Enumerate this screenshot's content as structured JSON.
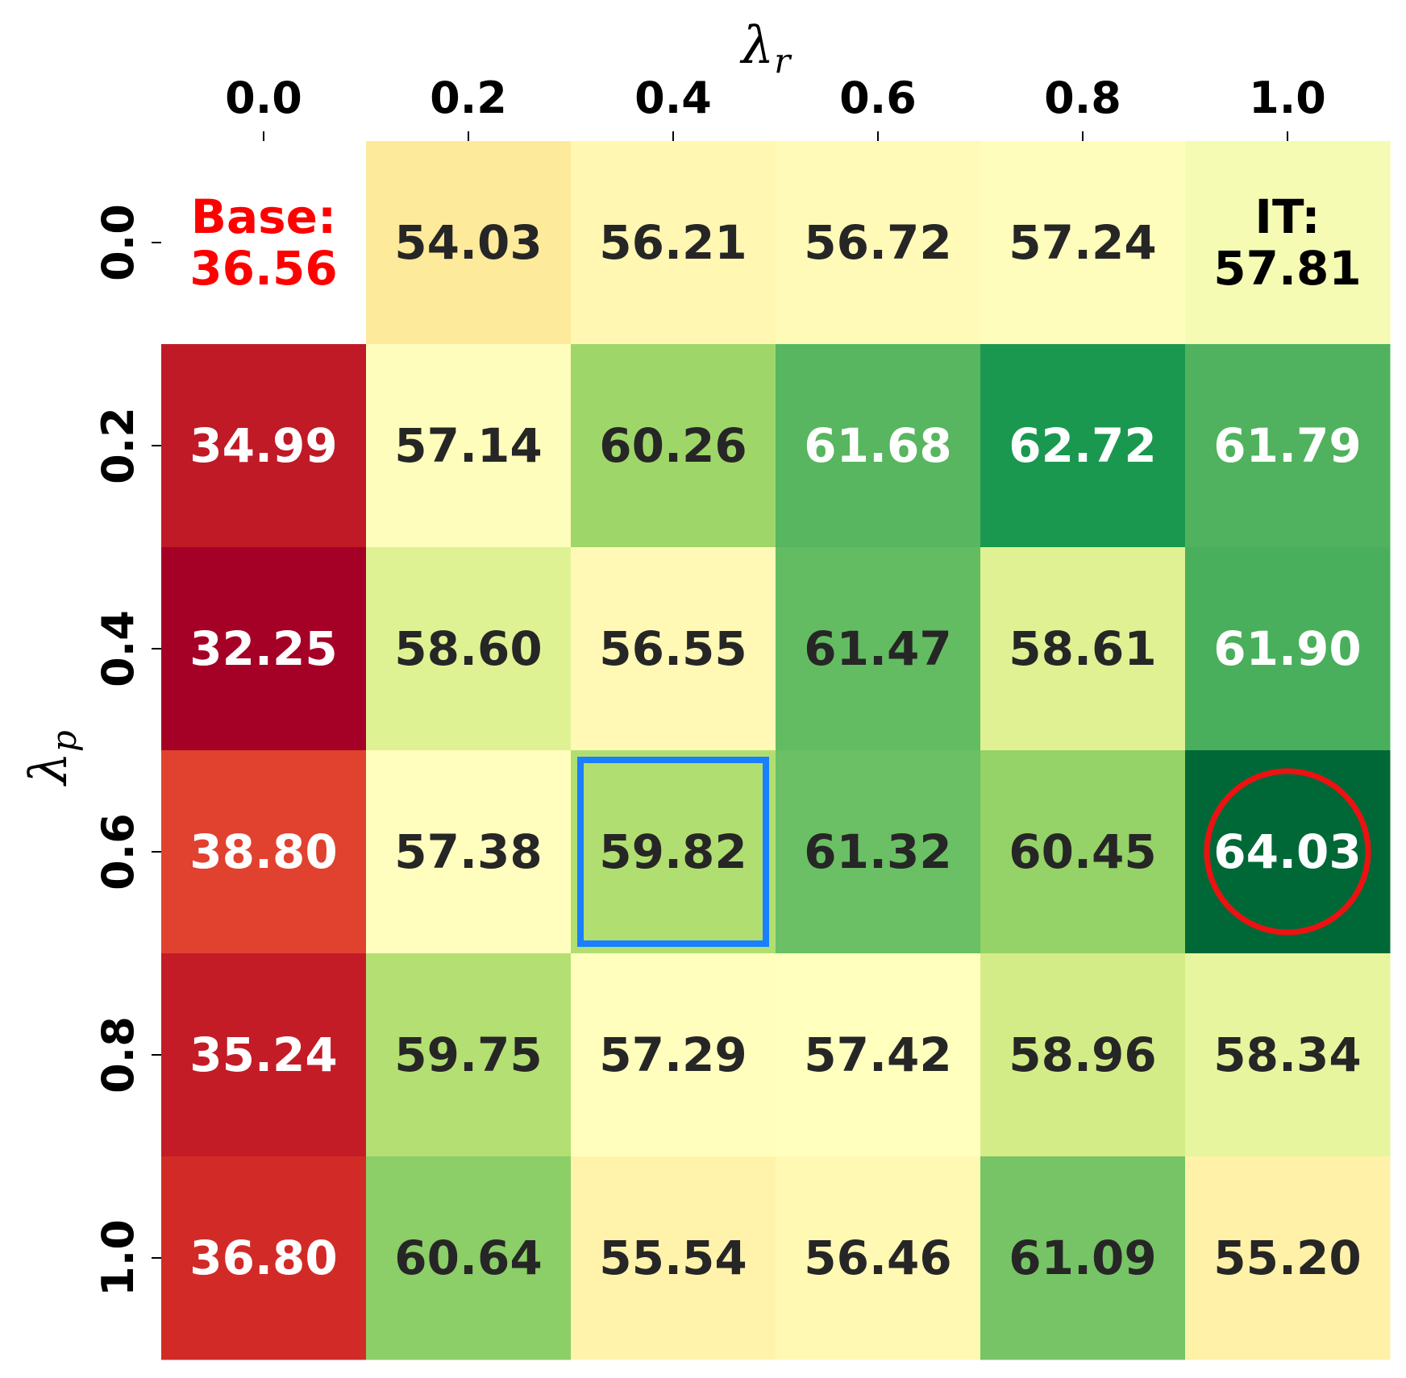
{
  "chart_data": {
    "type": "heatmap",
    "title": "",
    "xlabel": "λ_r",
    "ylabel": "λ_p",
    "x_label_main": "λ",
    "x_label_sub": "r",
    "y_label_main": "λ",
    "y_label_sub": "p",
    "x_position": "top",
    "x": [
      "0.0",
      "0.2",
      "0.4",
      "0.6",
      "0.8",
      "1.0"
    ],
    "y": [
      "0.0",
      "0.2",
      "0.4",
      "0.6",
      "0.8",
      "1.0"
    ],
    "values": [
      [
        null,
        54.03,
        56.21,
        56.72,
        57.24,
        57.81
      ],
      [
        34.99,
        57.14,
        60.26,
        61.68,
        62.72,
        61.79
      ],
      [
        32.25,
        58.6,
        56.55,
        61.47,
        58.61,
        61.9
      ],
      [
        38.8,
        57.38,
        59.82,
        61.32,
        60.45,
        64.03
      ],
      [
        35.24,
        59.75,
        57.29,
        57.42,
        58.96,
        58.34
      ],
      [
        36.8,
        60.64,
        55.54,
        56.46,
        61.09,
        55.2
      ]
    ],
    "cell_labels": [
      [
        "",
        "54.03",
        "56.21",
        "56.72",
        "57.24",
        ""
      ],
      [
        "34.99",
        "57.14",
        "60.26",
        "61.68",
        "62.72",
        "61.79"
      ],
      [
        "32.25",
        "58.60",
        "56.55",
        "61.47",
        "58.61",
        "61.90"
      ],
      [
        "38.80",
        "57.38",
        "59.82",
        "61.32",
        "60.45",
        "64.03"
      ],
      [
        "35.24",
        "59.75",
        "57.29",
        "57.42",
        "58.96",
        "58.34"
      ],
      [
        "36.80",
        "60.64",
        "55.54",
        "56.46",
        "61.09",
        "55.20"
      ]
    ],
    "base_annotation": {
      "label": "Base:",
      "value": "36.56",
      "row": 0,
      "col": 0,
      "color": "#ff0000"
    },
    "it_annotation": {
      "label": "IT:",
      "value": "57.81",
      "row": 0,
      "col": 5,
      "color": "#000000"
    },
    "highlights": [
      {
        "shape": "square",
        "row": 3,
        "col": 2,
        "color": "#1a80ff"
      },
      {
        "shape": "circle",
        "row": 3,
        "col": 5,
        "color": "#ee1111"
      }
    ],
    "colormap": "RdYlGn",
    "vmin": 32.25,
    "vmax": 64.03,
    "grid": false,
    "colorbar": false
  }
}
